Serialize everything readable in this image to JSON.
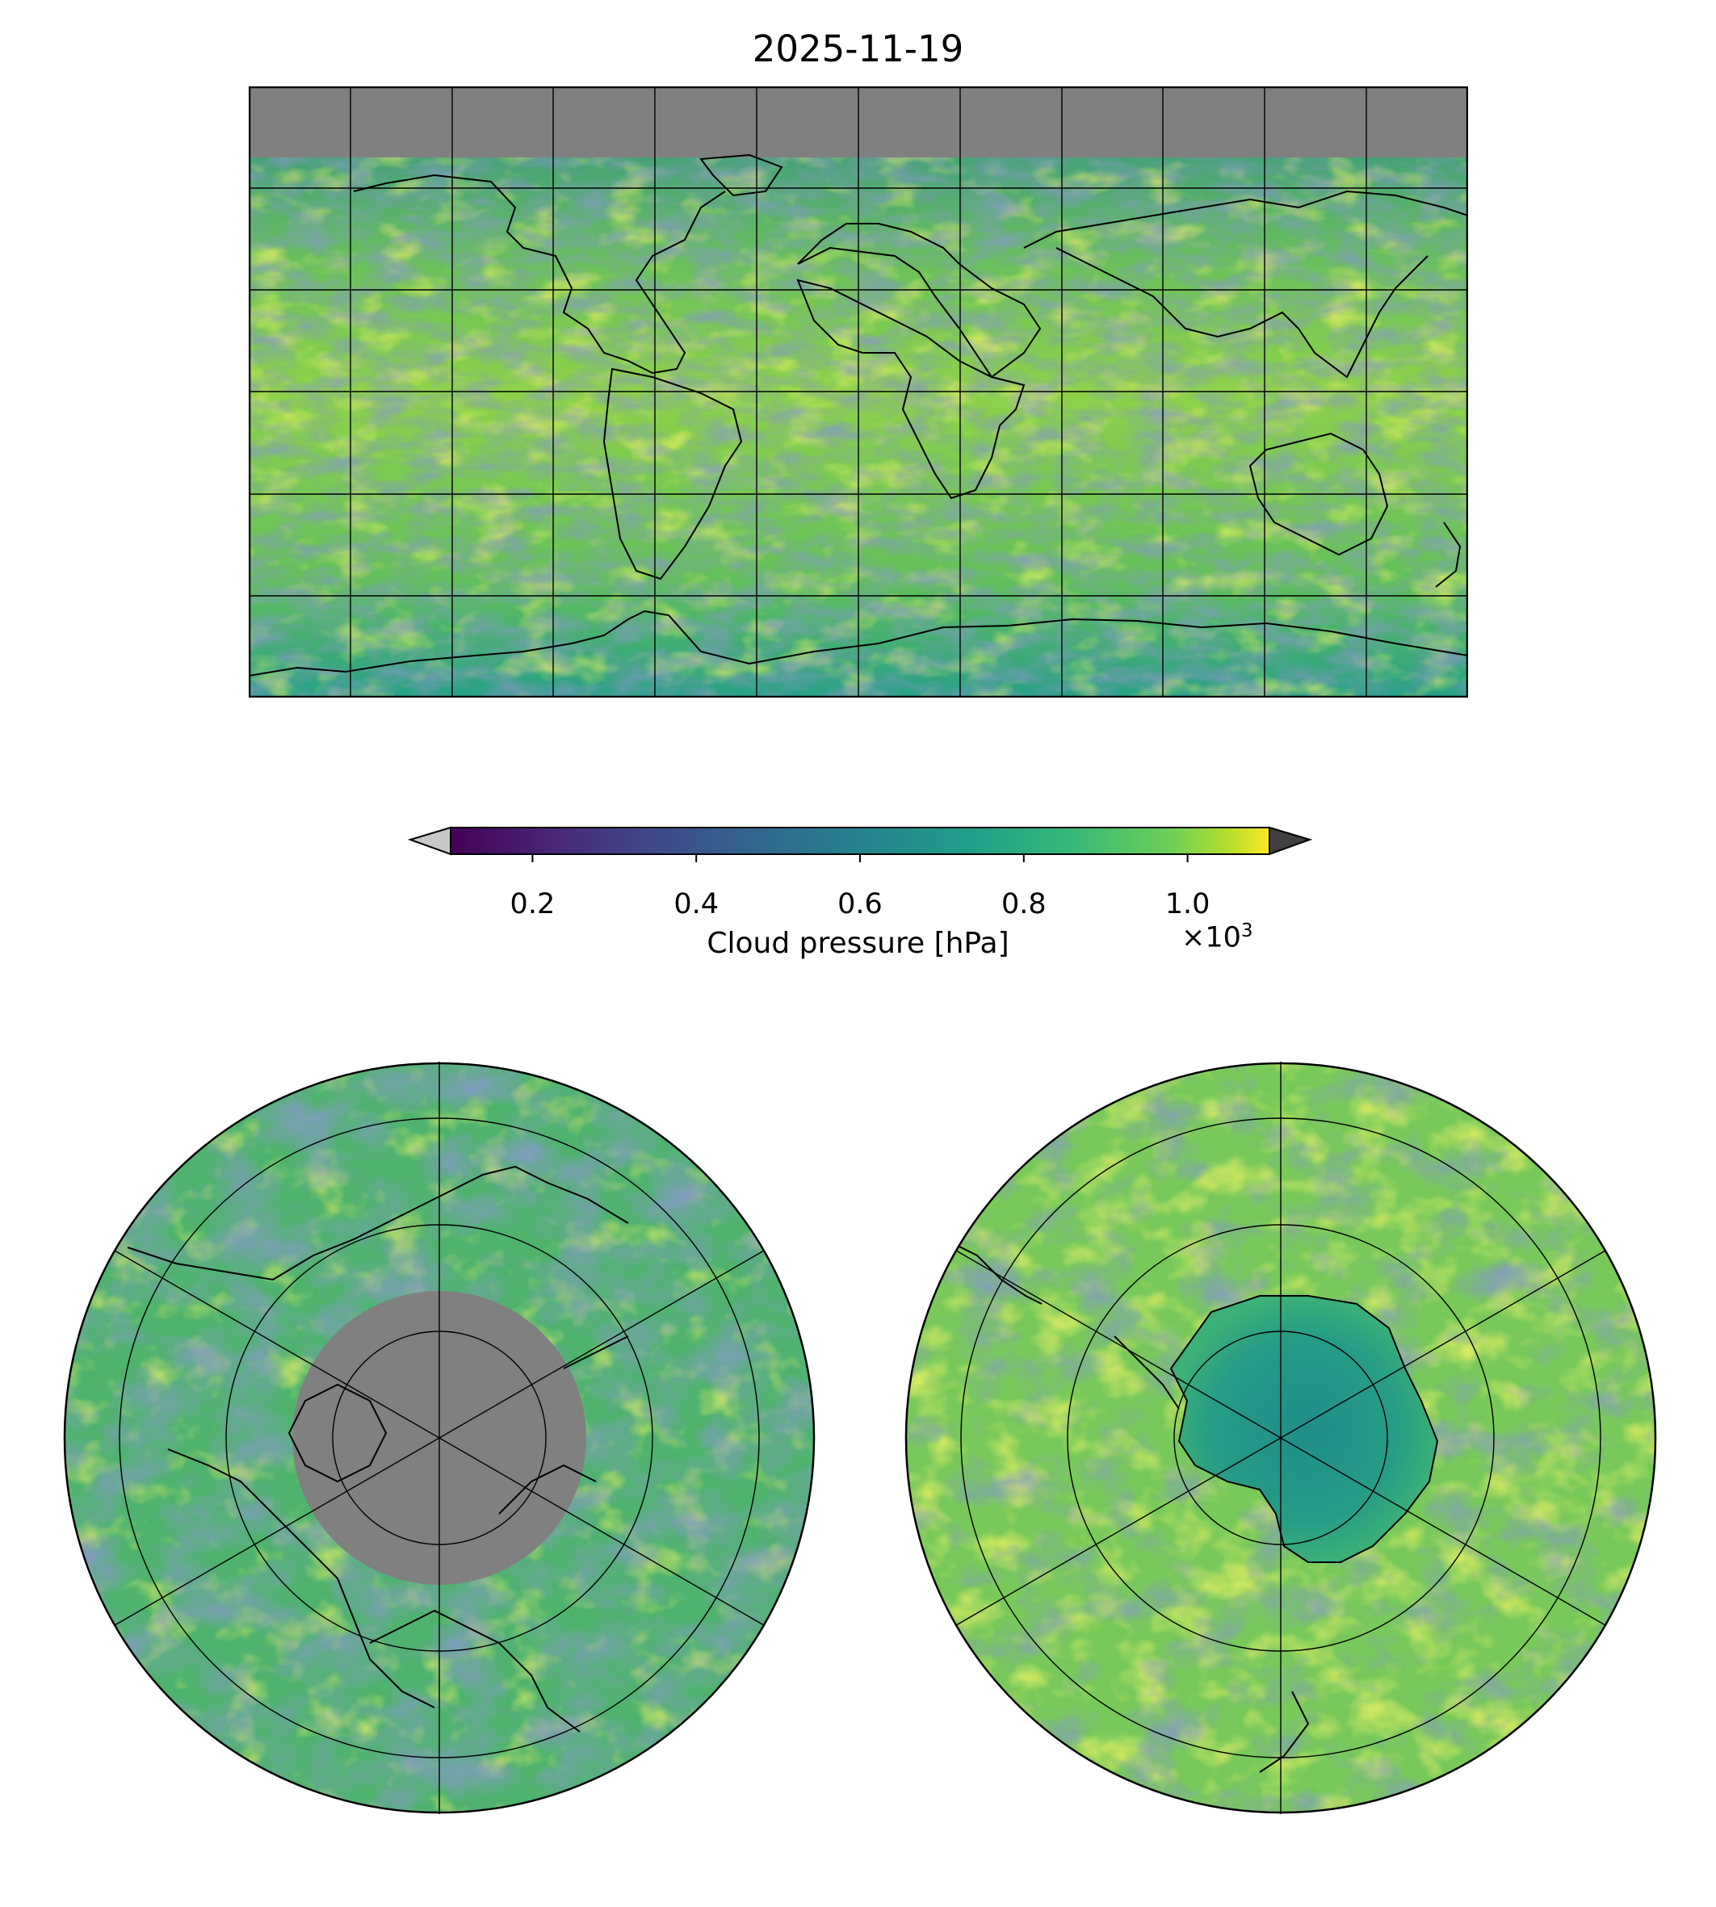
{
  "title": "2025-11-19",
  "colorbar": {
    "label": "Cloud pressure [hPa]",
    "multiplier": "×10",
    "multiplier_exp": "3",
    "ticks": [
      {
        "value": 0.2,
        "label": "0.2"
      },
      {
        "value": 0.4,
        "label": "0.4"
      },
      {
        "value": 0.6,
        "label": "0.6"
      },
      {
        "value": 0.8,
        "label": "0.8"
      },
      {
        "value": 1.0,
        "label": "1.0"
      }
    ],
    "range": [
      0.1,
      1.1
    ],
    "under_color": "#c8c8c8",
    "over_color": "#404040",
    "colormap": "viridis"
  },
  "maps": {
    "global": {
      "projection": "plate-carree",
      "no_data_color": "#808080"
    },
    "north_polar": {
      "projection": "north-polar-stereographic",
      "no_data_color": "#808080"
    },
    "south_polar": {
      "projection": "south-polar-stereographic"
    }
  },
  "colors": {
    "viridis": [
      "#440154",
      "#3b528b",
      "#21918c",
      "#5ec962",
      "#fde725"
    ],
    "no_data": "#808080",
    "coastline": "#000000"
  }
}
